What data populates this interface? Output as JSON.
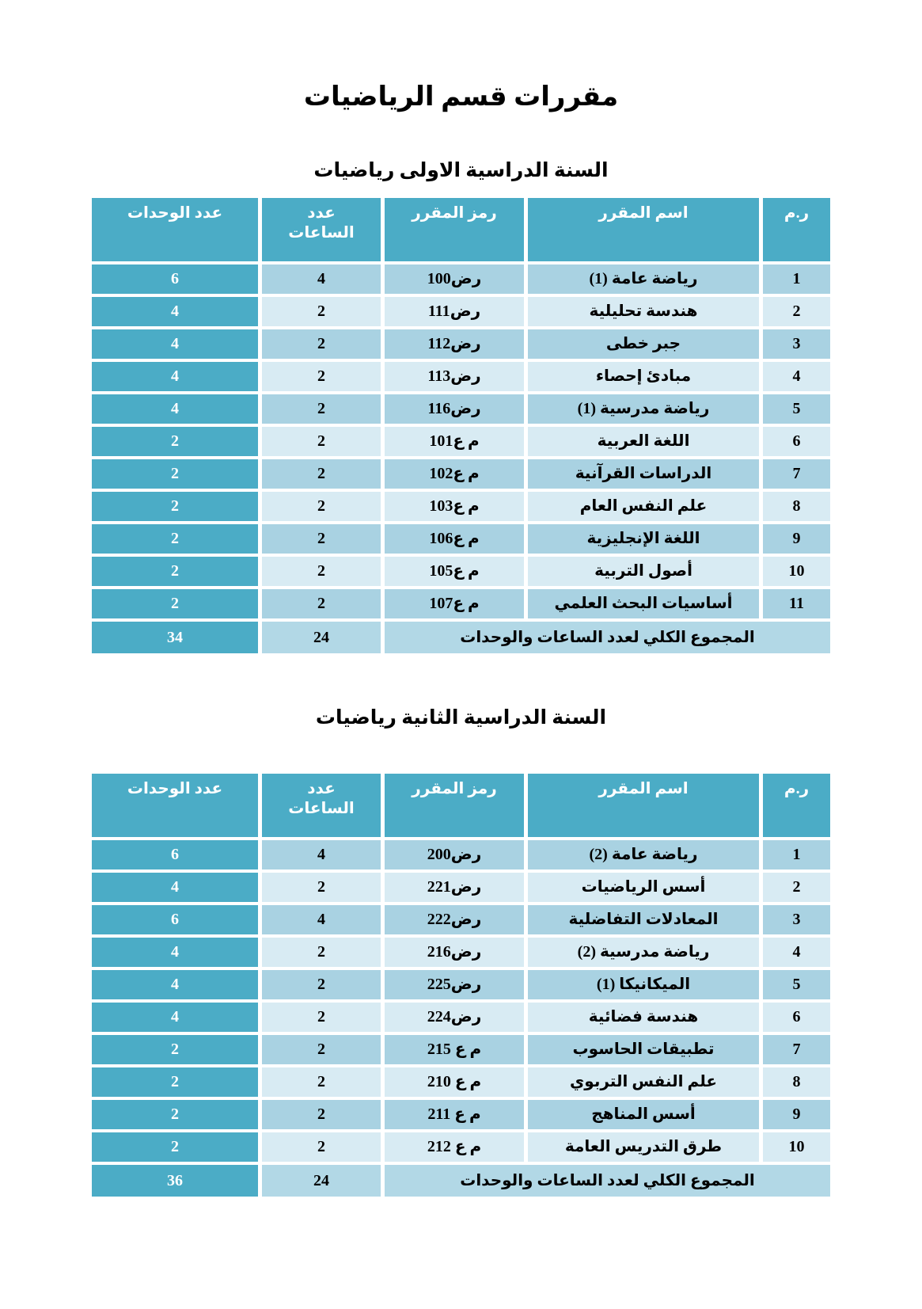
{
  "page": {
    "title": "مقررات قسم الرياضيات"
  },
  "colors": {
    "header_teal": "#4BACC6",
    "row_medium": "#A9D2E2",
    "row_light": "#D8EBF3",
    "total_row": "#B2D8E6",
    "header_text": "#ffffff",
    "body_text": "#000000"
  },
  "tables": [
    {
      "subtitle": "السنة الدراسية الاولى رياضيات",
      "headers": {
        "index": "ر.م",
        "name": "اسم المقرر",
        "code": "رمز المقرر",
        "hours": "عدد الساعات",
        "units": "عدد الوحدات"
      },
      "rows": [
        {
          "index": "1",
          "name": "رياضة عامة (1)",
          "code": "رض100",
          "hours": "4",
          "units": "6"
        },
        {
          "index": "2",
          "name": "هندسة تحليلية",
          "code": "رض111",
          "hours": "2",
          "units": "4"
        },
        {
          "index": "3",
          "name": "جبر خطى",
          "code": "رض112",
          "hours": "2",
          "units": "4"
        },
        {
          "index": "4",
          "name": "مبادئ إحصاء",
          "code": "رض113",
          "hours": "2",
          "units": "4"
        },
        {
          "index": "5",
          "name": "رياضة مدرسية (1)",
          "code": "رض116",
          "hours": "2",
          "units": "4"
        },
        {
          "index": "6",
          "name": "اللغة العربية",
          "code": "م ع101",
          "hours": "2",
          "units": "2"
        },
        {
          "index": "7",
          "name": "الدراسات القرآنية",
          "code": "م ع102",
          "hours": "2",
          "units": "2"
        },
        {
          "index": "8",
          "name": "علم النفس العام",
          "code": "م ع103",
          "hours": "2",
          "units": "2"
        },
        {
          "index": "9",
          "name": "اللغة الإنجليزية",
          "code": "م ع106",
          "hours": "2",
          "units": "2"
        },
        {
          "index": "10",
          "name": "أصول التربية",
          "code": "م ع105",
          "hours": "2",
          "units": "2"
        },
        {
          "index": "11",
          "name": "أساسيات البحث العلمي",
          "code": "م ع107",
          "hours": "2",
          "units": "2"
        }
      ],
      "total": {
        "label": "المجموع الكلي لعدد الساعات والوحدات",
        "hours": "24",
        "units": "34"
      }
    },
    {
      "subtitle": "السنة الدراسية الثانية رياضيات",
      "headers": {
        "index": "ر.م",
        "name": "اسم المقرر",
        "code": "رمز المقرر",
        "hours": "عدد الساعات",
        "units": "عدد الوحدات"
      },
      "rows": [
        {
          "index": "1",
          "name": "رياضة عامة (2)",
          "code": "رض200",
          "hours": "4",
          "units": "6"
        },
        {
          "index": "2",
          "name": "أسس الرياضيات",
          "code": "رض221",
          "hours": "2",
          "units": "4"
        },
        {
          "index": "3",
          "name": "المعادلات التفاضلية",
          "code": "رض222",
          "hours": "4",
          "units": "6"
        },
        {
          "index": "4",
          "name": "رياضة مدرسية (2)",
          "code": "رض216",
          "hours": "2",
          "units": "4"
        },
        {
          "index": "5",
          "name": "الميكانيكا (1)",
          "code": "رض225",
          "hours": "2",
          "units": "4"
        },
        {
          "index": "6",
          "name": "هندسة فضائية",
          "code": "رض224",
          "hours": "2",
          "units": "4"
        },
        {
          "index": "7",
          "name": "تطبيقات الحاسوب",
          "code": "م ع 215",
          "hours": "2",
          "units": "2"
        },
        {
          "index": "8",
          "name": "علم النفس التربوي",
          "code": "م ع 210",
          "hours": "2",
          "units": "2"
        },
        {
          "index": "9",
          "name": "أسس المناهج",
          "code": "م ع 211",
          "hours": "2",
          "units": "2"
        },
        {
          "index": "10",
          "name": "طرق التدريس العامة",
          "code": "م ع 212",
          "hours": "2",
          "units": "2"
        }
      ],
      "total": {
        "label": "المجموع الكلي لعدد الساعات والوحدات",
        "hours": "24",
        "units": "36"
      }
    }
  ]
}
